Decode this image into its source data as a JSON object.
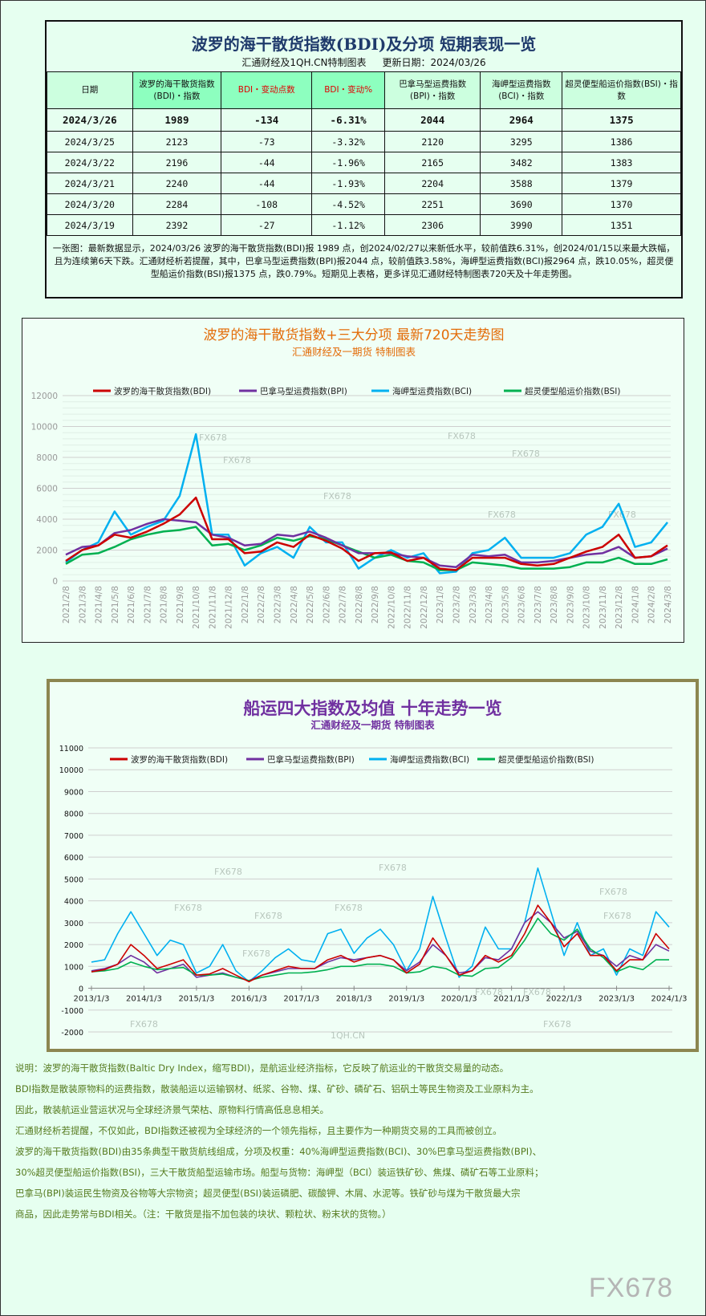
{
  "table_panel": {
    "title": "波罗的海干散货指数(BDI)及分项 短期表现一览",
    "source": "汇通财经及1QH.CN特制图表",
    "updated": "更新日期：2024/03/26",
    "headers": [
      "日期",
      "波罗的海干散货指数(BDI)・指数",
      "BDI・变动点数",
      "BDI・变动%",
      "巴拿马型运费指数(BPI)・指数",
      "海岬型运费指数(BCI)・指数",
      "超灵便型船运价指数(BSI)・指数"
    ],
    "rows": [
      [
        "2024/3/26",
        "1989",
        "-134",
        "-6.31%",
        "2044",
        "2964",
        "1375"
      ],
      [
        "2024/3/25",
        "2123",
        "-73",
        "-3.32%",
        "2120",
        "3295",
        "1386"
      ],
      [
        "2024/3/22",
        "2196",
        "-44",
        "-1.96%",
        "2165",
        "3482",
        "1383"
      ],
      [
        "2024/3/21",
        "2240",
        "-44",
        "-1.93%",
        "2204",
        "3588",
        "1379"
      ],
      [
        "2024/3/20",
        "2284",
        "-108",
        "-4.52%",
        "2251",
        "3690",
        "1370"
      ],
      [
        "2024/3/19",
        "2392",
        "-27",
        "-1.12%",
        "2306",
        "3990",
        "1351"
      ]
    ],
    "note": "一张图：最新数据显示，2024/03/26 波罗的海干散货指数(BDI)报 1989 点，创2024/02/27以来新低水平，较前值跌6.31%，创2024/01/15以来最大跌幅，且为连续第6天下跌。汇通财经析若提醒，其中，巴拿马型运费指数(BPI)报2044 点，较前值跌3.58%，海岬型运费指数(BCI)报2964 点，跌10.05%，超灵便型船运价指数(BSI)报1375 点，跌0.79%。短期见上表格，更多详见汇通财经特制图表720天及十年走势图。"
  },
  "colors": {
    "BDI": "#cc0000",
    "BPI": "#7030a0",
    "BCI": "#00b0f0",
    "BSI": "#00b050",
    "chart1_title": "#e36c09",
    "chart2_title": "#7030a0"
  },
  "chart_data": [
    {
      "type": "line",
      "title": "波罗的海干散货指数+三大分项  最新720天走势图",
      "subtitle": "汇通财经及一期货  特制图表",
      "legend_position": "top",
      "grid": true,
      "ylim": [
        0,
        12000
      ],
      "yticks": [
        "0",
        "2000",
        "4000",
        "6000",
        "8000",
        "10000",
        "12000"
      ],
      "categories": [
        "2021/2/8",
        "2021/3/8",
        "2021/4/8",
        "2021/5/8",
        "2021/6/8",
        "2021/7/8",
        "2021/8/8",
        "2021/9/8",
        "2021/10/8",
        "2021/11/8",
        "2021/12/8",
        "2022/1/8",
        "2022/2/8",
        "2022/3/8",
        "2022/4/8",
        "2022/5/8",
        "2022/6/8",
        "2022/7/8",
        "2022/8/8",
        "2022/9/8",
        "2022/10/8",
        "2022/11/8",
        "2022/12/8",
        "2023/1/8",
        "2023/2/8",
        "2023/3/8",
        "2023/4/8",
        "2023/5/8",
        "2023/6/8",
        "2023/7/8",
        "2023/8/8",
        "2023/9/8",
        "2023/10/8",
        "2023/11/8",
        "2023/12/8",
        "2024/1/8",
        "2024/2/8",
        "2024/3/8"
      ],
      "series": [
        {
          "name": "波罗的海干散货指数(BDI)",
          "key": "BDI",
          "values": [
            1300,
            2000,
            2300,
            3000,
            2800,
            3200,
            3700,
            4300,
            5400,
            2700,
            2700,
            1800,
            1900,
            2500,
            2200,
            3000,
            2600,
            2100,
            1300,
            1800,
            1850,
            1300,
            1500,
            800,
            700,
            1500,
            1500,
            1500,
            1100,
            1000,
            1100,
            1500,
            1900,
            2200,
            3000,
            1500,
            1600,
            2300
          ]
        },
        {
          "name": "巴拿马型运费指数(BPI)",
          "key": "BPI",
          "values": [
            1700,
            2200,
            2300,
            3100,
            3300,
            3700,
            4000,
            3900,
            3800,
            3000,
            2800,
            2300,
            2400,
            3000,
            2900,
            3200,
            2800,
            2300,
            1800,
            1800,
            1800,
            1600,
            1500,
            1000,
            900,
            1700,
            1600,
            1700,
            1200,
            1200,
            1300,
            1500,
            1700,
            1800,
            2200,
            1500,
            1600,
            2100
          ]
        },
        {
          "name": "海岬型运费指数(BCI)",
          "key": "BCI",
          "values": [
            1200,
            2000,
            2500,
            4500,
            3000,
            3500,
            3900,
            5500,
            9500,
            3000,
            3000,
            1000,
            1800,
            2200,
            1500,
            3500,
            2500,
            2500,
            800,
            1500,
            2000,
            1500,
            1800,
            500,
            600,
            1800,
            2000,
            2800,
            1500,
            1500,
            1500,
            1800,
            3000,
            3500,
            5000,
            2200,
            2500,
            3800
          ]
        },
        {
          "name": "超灵便型船运价指数(BSI)",
          "key": "BSI",
          "values": [
            1100,
            1700,
            1800,
            2200,
            2700,
            3000,
            3200,
            3300,
            3500,
            2300,
            2400,
            2000,
            2300,
            2800,
            2600,
            2900,
            2700,
            2300,
            1900,
            1500,
            1700,
            1300,
            1200,
            700,
            700,
            1200,
            1100,
            1000,
            800,
            800,
            800,
            900,
            1200,
            1200,
            1500,
            1100,
            1100,
            1400
          ]
        }
      ],
      "watermarks": [
        "FX678",
        "FX678",
        "FX678",
        "FX678",
        "FX678",
        "FX678",
        "FX678"
      ]
    },
    {
      "type": "line",
      "title": "船运四大指数及均值 十年走势一览",
      "subtitle": "汇通财经及一期货 特制图表",
      "legend_position": "top",
      "grid": true,
      "ylim": [
        -2000,
        11000
      ],
      "yticks": [
        "-2000",
        "-1000",
        "0",
        "1000",
        "2000",
        "3000",
        "4000",
        "5000",
        "6000",
        "7000",
        "8000",
        "9000",
        "10000",
        "11000"
      ],
      "xticks": [
        "2013/1/3",
        "2014/1/3",
        "2015/1/3",
        "2016/1/3",
        "2017/1/3",
        "2018/1/3",
        "2019/1/3",
        "2020/1/3",
        "2021/1/3",
        "2022/1/3",
        "2023/1/3",
        "2024/1/3"
      ],
      "x_quarters_from": "2013Q1",
      "series": [
        {
          "name": "波罗的海干散货指数(BDI)",
          "key": "BDI",
          "values": [
            750,
            850,
            1100,
            2000,
            1500,
            900,
            1100,
            1300,
            600,
            650,
            900,
            600,
            300,
            600,
            800,
            1000,
            900,
            900,
            1300,
            1500,
            1200,
            1400,
            1500,
            1300,
            700,
            1100,
            2300,
            1500,
            600,
            800,
            1500,
            1200,
            1500,
            2500,
            3800,
            3000,
            1900,
            2500,
            1500,
            1500,
            800,
            1300,
            1300,
            2500,
            1800
          ]
        },
        {
          "name": "巴拿马型运费指数(BPI)",
          "key": "BPI",
          "values": [
            800,
            900,
            1100,
            1500,
            1200,
            700,
            900,
            1100,
            500,
            600,
            700,
            500,
            350,
            600,
            750,
            900,
            900,
            900,
            1200,
            1400,
            1300,
            1400,
            1500,
            1300,
            800,
            1200,
            2000,
            1500,
            700,
            800,
            1400,
            1300,
            1800,
            3000,
            3500,
            3000,
            2300,
            2600,
            1700,
            1500,
            1000,
            1500,
            1300,
            2000,
            1700
          ]
        },
        {
          "name": "海岬型运费指数(BCI)",
          "key": "BCI",
          "values": [
            1200,
            1300,
            2500,
            3500,
            2500,
            1500,
            2200,
            2000,
            700,
            1000,
            2000,
            800,
            300,
            800,
            1400,
            1800,
            1300,
            1200,
            2500,
            2700,
            1600,
            2300,
            2700,
            2000,
            800,
            1800,
            4200,
            2300,
            500,
            1000,
            2800,
            1800,
            1800,
            3000,
            5500,
            3500,
            1500,
            3000,
            1500,
            1800,
            600,
            1800,
            1500,
            3500,
            2800
          ]
        },
        {
          "name": "超灵便型船运价指数(BSI)",
          "key": "BSI",
          "values": [
            750,
            800,
            900,
            1200,
            1000,
            850,
            900,
            950,
            600,
            600,
            650,
            500,
            350,
            500,
            600,
            700,
            700,
            750,
            850,
            1000,
            1000,
            1100,
            1100,
            1000,
            700,
            750,
            1000,
            900,
            600,
            550,
            900,
            950,
            1400,
            2200,
            3200,
            2500,
            2200,
            2700,
            1800,
            1400,
            750,
            1000,
            850,
            1300,
            1300
          ]
        }
      ],
      "watermarks": [
        "FX678",
        "FX678",
        "FX678",
        "FX678",
        "FX678",
        "FX678",
        "FX678",
        "FX678",
        "FX678",
        "FX678",
        "FX678",
        "FX678",
        "1QH.CN"
      ]
    }
  ],
  "description": [
    "说明：波罗的海干散货指数(Baltic Dry Index，缩写BDI)，是航运业经济指标，它反映了航运业的干散货交易量的动态。",
    "BDI指数是散装原物料的运费指数，散装船运以运输钢材、纸浆、谷物、煤、矿砂、磷矿石、铝矾土等民生物资及工业原料为主。",
    "因此，散装航运业营运状况与全球经济景气荣枯、原物料行情高低息息相关。",
    "汇通财经析若提醒，不仅如此，BDI指数还被视为全球经济的一个领先指标，且主要作为一种期货交易的工具而被创立。",
    "波罗的海干散货指数(BDI)由35条典型干散货航线组成，分项及权重：40%海岬型运费指数(BCI)、30%巴拿马型运费指数(BPI)、",
    "30%超灵便型船运价指数(BSI)，三大干散货船型运输市场。船型与货物：海岬型（BCI）装运铁矿砂、焦煤、磷矿石等工业原料；",
    "巴拿马(BPI)装运民生物资及谷物等大宗物资；超灵便型(BSI)装运磷肥、碳酸钾、木屑、水泥等。铁矿砂与煤为干散货最大宗",
    "商品，因此走势常与BDI相关。（注：干散货是指不加包装的块状、颗粒状、粉末状的货物。）"
  ],
  "watermark": "FX678"
}
